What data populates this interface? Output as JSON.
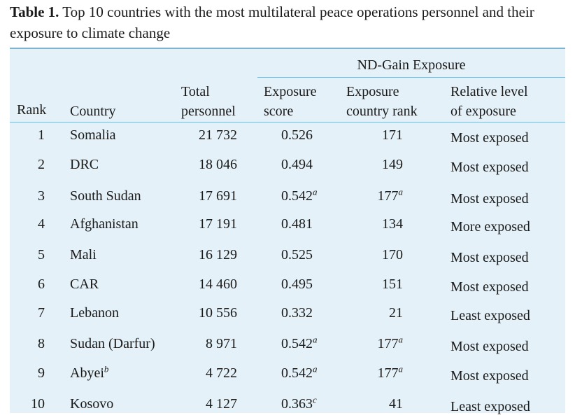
{
  "caption": {
    "label": "Table 1.",
    "text": " Top 10 countries with the most multilateral peace operations personnel and their exposure to climate change"
  },
  "header": {
    "group_label": "ND-Gain Exposure",
    "rank": "Rank",
    "country": "Country",
    "total_line1": "Total",
    "total_line2": "personnel",
    "score_line1": "Exposure",
    "score_line2": "score",
    "crank_line1": "Exposure",
    "crank_line2": "country rank",
    "level_line1": "Relative level",
    "level_line2": "of exposure"
  },
  "rows": [
    {
      "rank": "1",
      "country": "Somalia",
      "country_fn": "",
      "personnel": "21 732",
      "score": "0.526",
      "score_fn": "",
      "crank": "171",
      "crank_fn": "",
      "level": "Most exposed"
    },
    {
      "rank": "2",
      "country": "DRC",
      "country_fn": "",
      "personnel": "18 046",
      "score": "0.494",
      "score_fn": "",
      "crank": "149",
      "crank_fn": "",
      "level": "Most exposed"
    },
    {
      "rank": "3",
      "country": "South Sudan",
      "country_fn": "",
      "personnel": "17 691",
      "score": "0.542",
      "score_fn": "a",
      "crank": "177",
      "crank_fn": "a",
      "level": "Most exposed"
    },
    {
      "rank": "4",
      "country": "Afghanistan",
      "country_fn": "",
      "personnel": "17 191",
      "score": "0.481",
      "score_fn": "",
      "crank": "134",
      "crank_fn": "",
      "level": "More exposed"
    },
    {
      "rank": "5",
      "country": "Mali",
      "country_fn": "",
      "personnel": "16 129",
      "score": "0.525",
      "score_fn": "",
      "crank": "170",
      "crank_fn": "",
      "level": "Most exposed"
    },
    {
      "rank": "6",
      "country": "CAR",
      "country_fn": "",
      "personnel": "14 460",
      "score": "0.495",
      "score_fn": "",
      "crank": "151",
      "crank_fn": "",
      "level": "Most exposed"
    },
    {
      "rank": "7",
      "country": "Lebanon",
      "country_fn": "",
      "personnel": "10 556",
      "score": "0.332",
      "score_fn": "",
      "crank": "21",
      "crank_fn": "",
      "level": "Least exposed"
    },
    {
      "rank": "8",
      "country": "Sudan (Darfur)",
      "country_fn": "",
      "personnel": "8 971",
      "score": "0.542",
      "score_fn": "a",
      "crank": "177",
      "crank_fn": "a",
      "level": "Most exposed"
    },
    {
      "rank": "9",
      "country": "Abyei",
      "country_fn": "b",
      "personnel": "4 722",
      "score": "0.542",
      "score_fn": "a",
      "crank": "177",
      "crank_fn": "a",
      "level": "Most exposed"
    },
    {
      "rank": "10",
      "country": "Kosovo",
      "country_fn": "",
      "personnel": "4 127",
      "score": "0.363",
      "score_fn": "c",
      "crank": "41",
      "crank_fn": "",
      "level": "Least exposed"
    }
  ]
}
